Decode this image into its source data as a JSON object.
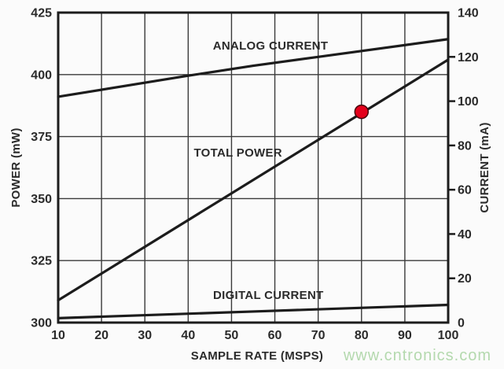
{
  "watermark": {
    "text": "www.cntronics.com",
    "color": "#b4d9ae"
  },
  "chart_data": {
    "type": "line",
    "title": "",
    "xlabel": "SAMPLE RATE (MSPS)",
    "ylabel_left": "POWER (mW)",
    "ylabel_right": "CURRENT (mA)",
    "x_axis": {
      "min": 10,
      "max": 100,
      "ticks": [
        10,
        20,
        30,
        40,
        50,
        60,
        70,
        80,
        90,
        100
      ]
    },
    "y_left": {
      "min": 300,
      "max": 425,
      "ticks": [
        300,
        325,
        350,
        375,
        400,
        425
      ]
    },
    "y_right": {
      "min": 0,
      "max": 140,
      "ticks": [
        0,
        20,
        40,
        60,
        80,
        100,
        120,
        140
      ]
    },
    "grid": true,
    "legend_position": "inline-labels",
    "line_color": "#1c1c1c",
    "grid_color": "#3a3a3a",
    "series": [
      {
        "name": "ANALOG CURRENT",
        "axis": "right",
        "points": [
          [
            10,
            102
          ],
          [
            40,
            111.5
          ],
          [
            55,
            116
          ],
          [
            70,
            120
          ],
          [
            100,
            128
          ]
        ],
        "label_pos": {
          "x": 59,
          "y": 125,
          "axis": "right"
        }
      },
      {
        "name": "TOTAL POWER",
        "axis": "left",
        "points": [
          [
            10,
            309
          ],
          [
            100,
            406
          ]
        ],
        "label_pos": {
          "x": 51.5,
          "y": 368.5,
          "axis": "left"
        }
      },
      {
        "name": "DIGITAL CURRENT",
        "axis": "right",
        "points": [
          [
            10,
            2
          ],
          [
            55,
            5
          ],
          [
            100,
            8
          ]
        ],
        "label_pos": {
          "x": 58.5,
          "y": 12.5,
          "axis": "right"
        }
      }
    ],
    "marker": {
      "series": "TOTAL POWER",
      "x": 80,
      "value": 385,
      "axis": "left",
      "color": "#e3001b",
      "edge_color": "#47000a"
    }
  }
}
